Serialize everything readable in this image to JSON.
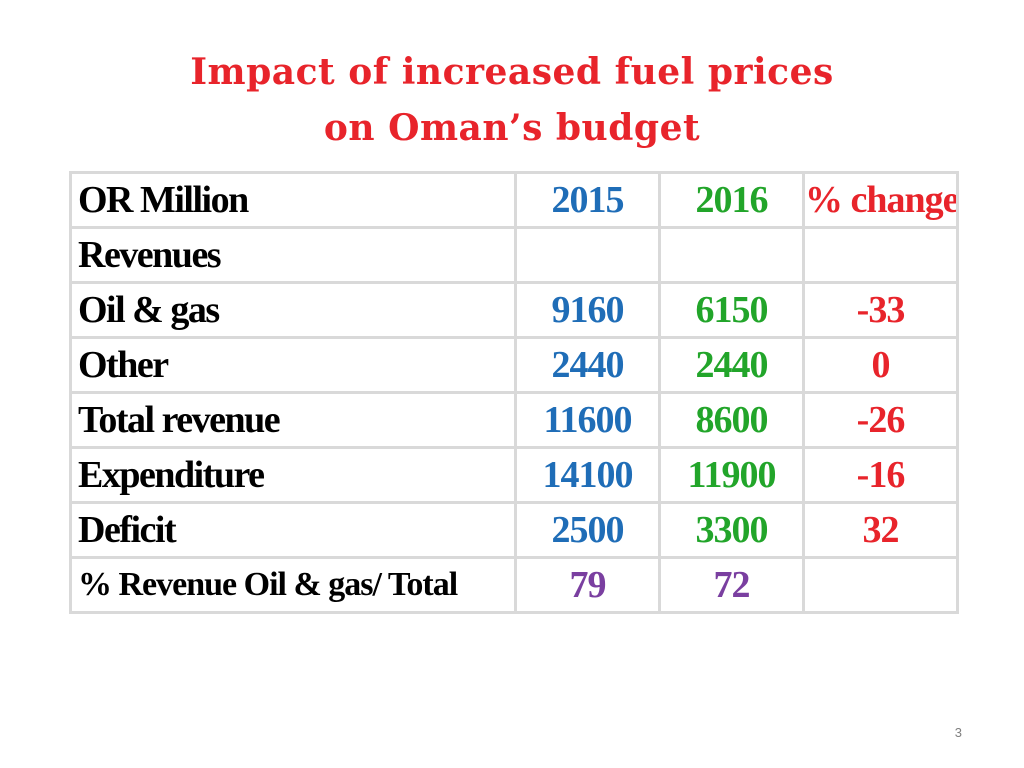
{
  "slide": {
    "title_line1": "Impact of increased fuel prices",
    "title_line2": "on Oman’s budget",
    "page_number": "3",
    "colors": {
      "title": "#e8242b",
      "year_2015": "#1f6db7",
      "year_2016": "#22a52a",
      "percent_change": "#e8242b",
      "ratio_values": "#7a3fa0",
      "grid": "#d9d9d9"
    }
  },
  "table": {
    "header": {
      "label": "OR Million",
      "col_2015": "2015",
      "col_2016": "2016",
      "col_change": "% change"
    },
    "rows": [
      {
        "label": "Revenues",
        "v2015": "",
        "v2016": "",
        "change": ""
      },
      {
        "label": "Oil & gas",
        "v2015": "9160",
        "v2016": "6150",
        "change": "-33"
      },
      {
        "label": "Other",
        "v2015": "2440",
        "v2016": "2440",
        "change": "0"
      },
      {
        "label": "Total revenue",
        "v2015": "11600",
        "v2016": "8600",
        "change": "-26"
      },
      {
        "label": "Expenditure",
        "v2015": "14100",
        "v2016": "11900",
        "change": "-16"
      },
      {
        "label": "Deficit",
        "v2015": "2500",
        "v2016": "3300",
        "change": "32"
      },
      {
        "label": "% Revenue Oil & gas/ Total",
        "v2015": "79",
        "v2016": "72",
        "change": ""
      }
    ]
  }
}
